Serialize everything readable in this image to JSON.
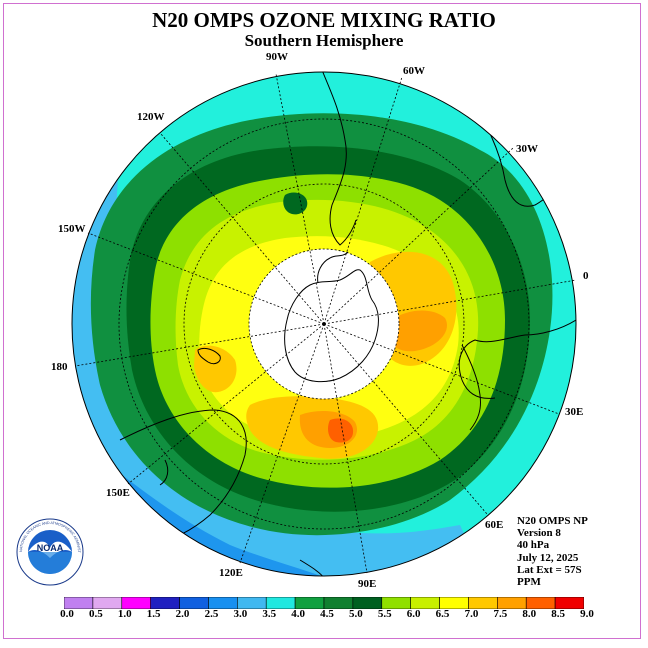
{
  "title": "N20 OMPS OZONE MIXING RATIO",
  "subtitle": "Southern Hemisphere",
  "longitude_labels": {
    "lon_90w": "90W",
    "lon_60w": "60W",
    "lon_30w": "30W",
    "lon_0": "0",
    "lon_30e": "30E",
    "lon_60e": "60E",
    "lon_90e": "90E",
    "lon_120e": "120E",
    "lon_150e": "150E",
    "lon_180": "180",
    "lon_150w": "150W",
    "lon_120w": "120W"
  },
  "info": {
    "instrument": "N20 OMPS NP",
    "version": "Version 8",
    "pressure": "40 hPa",
    "date": "July 12, 2025",
    "lat_ext": "Lat Ext = 57S",
    "units": "PPM"
  },
  "logo": {
    "text": "NOAA",
    "ring_text": "NATIONAL OCEANIC AND ATMOSPHERIC ADMINISTRATION · U.S. DEPARTMENT OF COMMERCE"
  },
  "colorbar": {
    "ticks": [
      "0.0",
      "0.5",
      "1.0",
      "1.5",
      "2.0",
      "2.5",
      "3.0",
      "3.5",
      "4.0",
      "4.5",
      "5.0",
      "5.5",
      "6.0",
      "6.5",
      "7.0",
      "7.5",
      "8.0",
      "8.5",
      "9.0"
    ],
    "colors": [
      "#c080f0",
      "#e0a8f0",
      "#ff00ff",
      "#2020c0",
      "#1060e0",
      "#1890f0",
      "#40b8f0",
      "#20e8e0",
      "#10a040",
      "#108030",
      "#006020",
      "#90e000",
      "#c8f000",
      "#ffff00",
      "#ffc800",
      "#ffa000",
      "#ff6000",
      "#f00000",
      "#905030"
    ]
  },
  "palette": {
    "outer_cyan": "#22f0dc",
    "light_blue": "#44bef2",
    "mid_blue": "#1e96ee",
    "green_45": "#109040",
    "green_50": "#006820",
    "lime_55": "#8ee000",
    "lime_60": "#c8f200",
    "yellow_65": "#ffff10",
    "orange_70": "#ffc800",
    "orange_75": "#ffa000",
    "red_80": "#ff6000",
    "no_data": "#ffffff",
    "border": "#d070d0"
  }
}
